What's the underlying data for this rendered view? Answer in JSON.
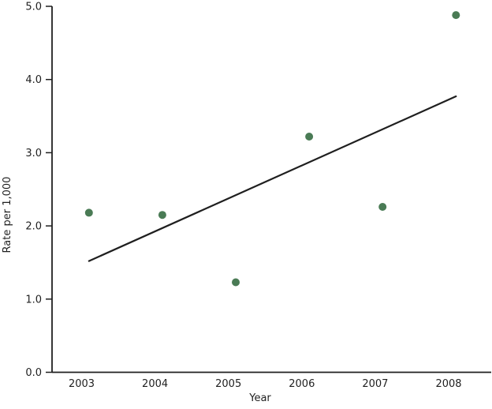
{
  "figure": {
    "background": "#ffffff"
  },
  "chart_data": {
    "type": "scatter",
    "title": "",
    "xlabel": "Year",
    "ylabel": "Rate per 1,000",
    "x_ticks": [
      2003,
      2004,
      2005,
      2006,
      2007,
      2008
    ],
    "y_tick_labels": [
      "0.0",
      "1.0",
      "2.0",
      "3.0",
      "4.0",
      "5.0"
    ],
    "xlim": [
      2002.6,
      2008.6
    ],
    "ylim": [
      0,
      5
    ],
    "grid": false,
    "legend": "none",
    "points": [
      {
        "x": 2003,
        "y": 2.18
      },
      {
        "x": 2004,
        "y": 2.15
      },
      {
        "x": 2005,
        "y": 1.23
      },
      {
        "x": 2006,
        "y": 3.22
      },
      {
        "x": 2007,
        "y": 2.26
      },
      {
        "x": 2008,
        "y": 4.88
      }
    ],
    "marker_x_offset_years": 0.1,
    "trendline": {
      "x1": 2003,
      "y1": 1.52,
      "x2": 2008,
      "y2": 3.77
    },
    "colors": {
      "marker": "#4a7b55",
      "trend_line": "#1f1f1f",
      "axis": "#1f1f1f",
      "text": "#1f1f1f"
    }
  }
}
